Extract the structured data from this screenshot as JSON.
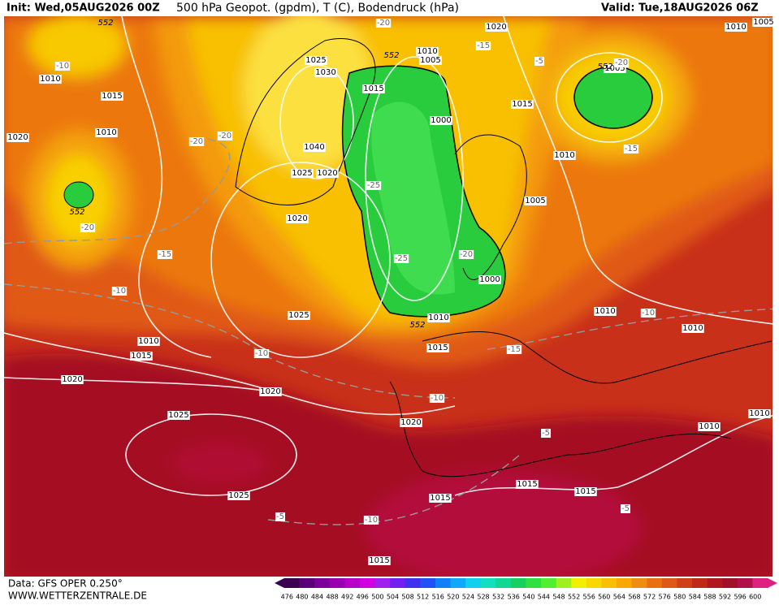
{
  "header": {
    "init": "Init: Wed,05AUG2026 00Z",
    "title": "500 hPa Geopot. (gpdm), T (C), Bodendruck (hPa)",
    "valid": "Valid: Tue,18AUG2026 06Z"
  },
  "map": {
    "pressure_labels": [
      1010,
      1015,
      1010,
      1020,
      1025,
      1030,
      1040,
      1025,
      1020,
      1015,
      1010,
      1005,
      1000,
      1020,
      1010,
      1005,
      1015,
      1010,
      1005,
      1005,
      1020,
      1025,
      1010,
      1015,
      1020,
      1020,
      1000,
      1010,
      1015,
      1010,
      1010,
      1020,
      1025,
      1025,
      1015,
      1015,
      1015,
      1010,
      1010,
      1015
    ],
    "temperature_labels": [
      -20,
      -15,
      -5,
      -20,
      -10,
      -20,
      -20,
      -15,
      -25,
      -20,
      -15,
      -10,
      -25,
      -20,
      -10,
      -10,
      -15,
      -10,
      -5,
      -5,
      -10,
      -5
    ],
    "height_labels": [
      552,
      552,
      552,
      552,
      552
    ]
  },
  "colorbar": {
    "labels": [
      476,
      480,
      484,
      488,
      492,
      496,
      500,
      504,
      508,
      512,
      516,
      520,
      524,
      528,
      532,
      536,
      540,
      544,
      548,
      552,
      556,
      560,
      564,
      568,
      572,
      576,
      580,
      584,
      588,
      592,
      596,
      600
    ],
    "colors": [
      "#3c0050",
      "#5a0078",
      "#7a0098",
      "#9800b0",
      "#b800c8",
      "#d000e0",
      "#a020f0",
      "#7020f0",
      "#4030f0",
      "#2050f8",
      "#1080f8",
      "#10a8f8",
      "#10d0f0",
      "#10e0c0",
      "#10d890",
      "#18d060",
      "#30e040",
      "#50f030",
      "#a0f020",
      "#f0f000",
      "#f8d800",
      "#f8c000",
      "#f8a800",
      "#f08c10",
      "#e87010",
      "#e05818",
      "#d04018",
      "#c02818",
      "#b01820",
      "#a01028",
      "#b01048",
      "#e02080"
    ]
  },
  "footer": {
    "data": "Data: GFS OPER 0.250°",
    "site": "WWW.WETTERZENTRALE.DE"
  }
}
